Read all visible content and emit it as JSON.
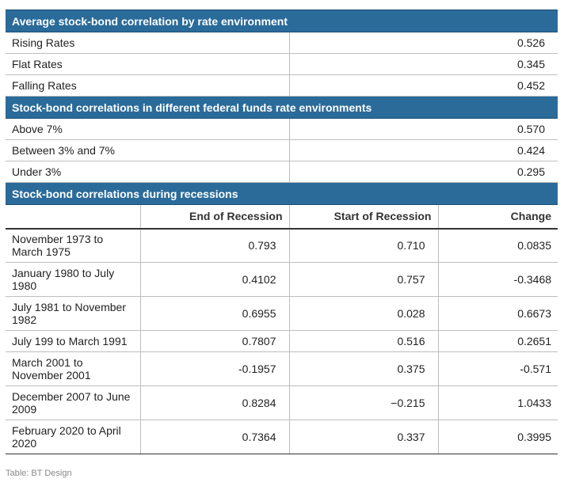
{
  "sections": {
    "rate_env": {
      "title": "Average stock-bond correlation by rate environment",
      "rows": [
        {
          "label": "Rising Rates",
          "value": "0.526"
        },
        {
          "label": "Flat Rates",
          "value": "0.345"
        },
        {
          "label": "Falling Rates",
          "value": "0.452"
        }
      ]
    },
    "fed_funds": {
      "title": "Stock-bond correlations in different federal funds rate environments",
      "rows": [
        {
          "label": "Above 7%",
          "value": "0.570"
        },
        {
          "label": "Between 3% and 7%",
          "value": "0.424"
        },
        {
          "label": "Under 3%",
          "value": "0.295"
        }
      ]
    },
    "recessions": {
      "title": "Stock-bond correlations during recessions",
      "headers": [
        "",
        "End of Recession",
        "Start of Recession",
        "Change"
      ],
      "rows": [
        {
          "period": "November 1973 to March 1975",
          "end": "0.793",
          "start": "0.710",
          "change": "0.0835"
        },
        {
          "period": "January 1980 to July 1980",
          "end": "0.4102",
          "start": "0.757",
          "change": "-0.3468"
        },
        {
          "period": "July 1981 to November 1982",
          "end": "0.6955",
          "start": "0.028",
          "change": "0.6673"
        },
        {
          "period": "July 199 to March 1991",
          "end": "0.7807",
          "start": "0.516",
          "change": "0.2651"
        },
        {
          "period": "March 2001 to November 2001",
          "end": "-0.1957",
          "start": "0.375",
          "change": "-0.571"
        },
        {
          "period": "December 2007 to June 2009",
          "end": "0.8284",
          "start": "−0.215",
          "change": "1.0433"
        },
        {
          "period": "February 2020 to April 2020",
          "end": "0.7364",
          "start": "0.337",
          "change": "0.3995"
        }
      ]
    }
  },
  "source": "Table: BT Design",
  "colors": {
    "section_header": "#2a6b9a"
  }
}
